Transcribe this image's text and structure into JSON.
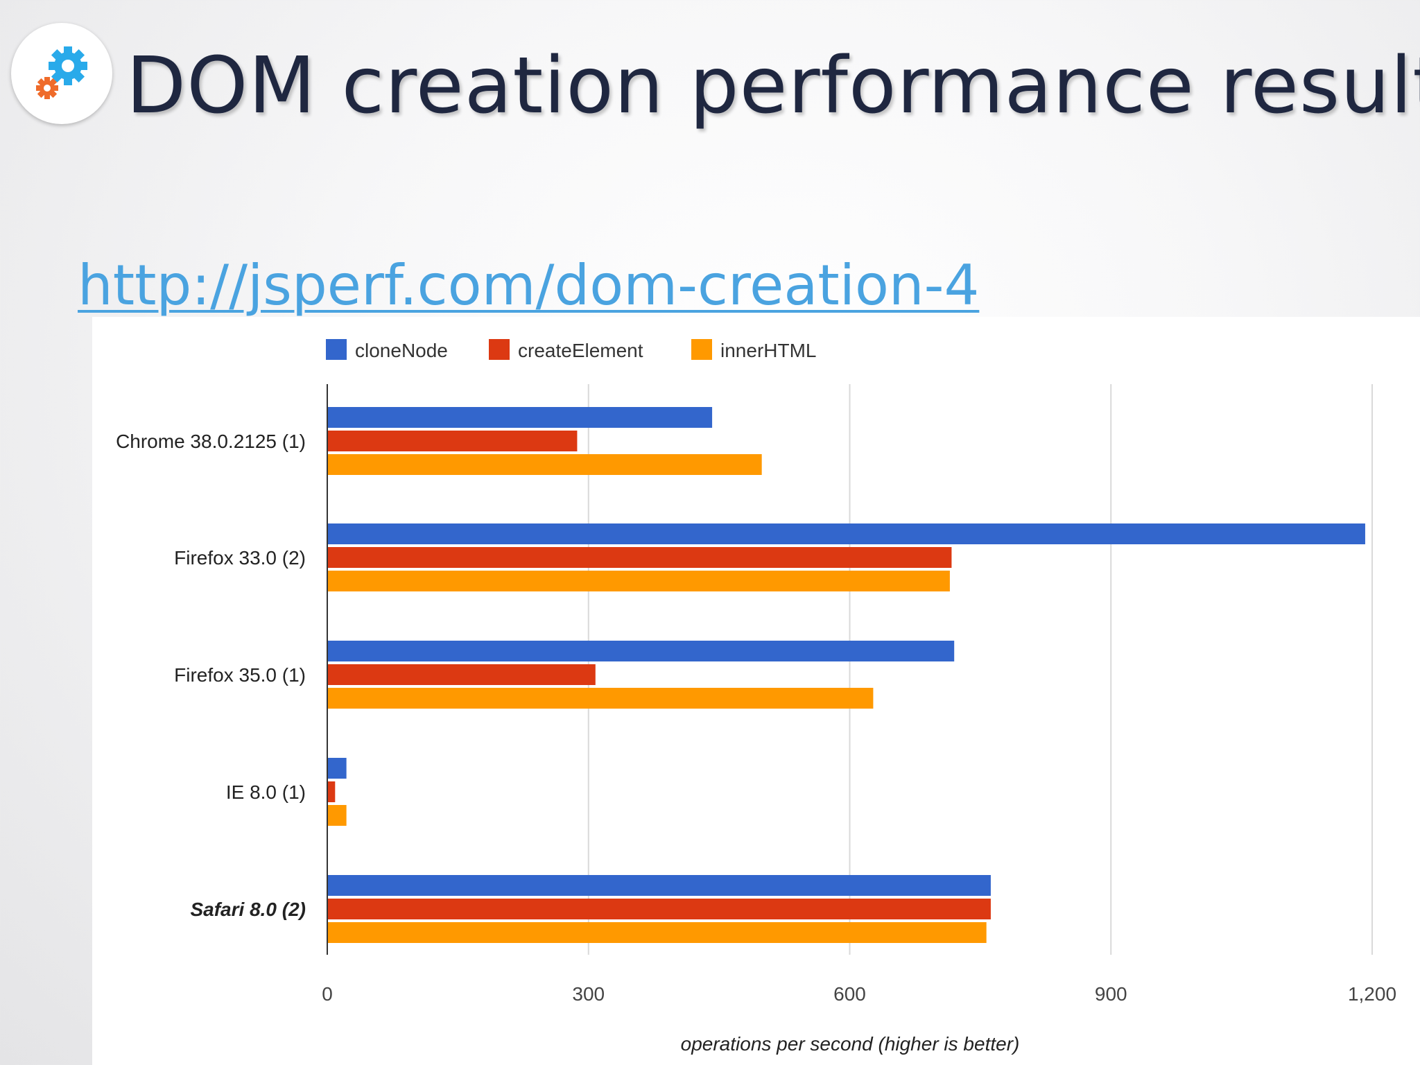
{
  "slide": {
    "title": "DOM creation performance results",
    "link": "http://jsperf.com/dom-creation-4",
    "logo_icon": "gears-icon"
  },
  "chart_data": {
    "type": "bar",
    "orientation": "horizontal",
    "categories": [
      "Chrome 38.0.2125 (1)",
      "Firefox 33.0 (2)",
      "Firefox 35.0 (1)",
      "IE 8.0 (1)",
      "Safari 8.0 (2)"
    ],
    "highlight_category": "Safari 8.0 (2)",
    "series": [
      {
        "name": "cloneNode",
        "color": "#3366cc",
        "values": [
          442,
          1192,
          720,
          22,
          762
        ]
      },
      {
        "name": "createElement",
        "color": "#dc3912",
        "values": [
          287,
          717,
          308,
          9,
          762
        ]
      },
      {
        "name": "innerHTML",
        "color": "#ff9900",
        "values": [
          499,
          715,
          627,
          22,
          757
        ]
      }
    ],
    "xlim": [
      0,
      1200
    ],
    "xticks": [
      0,
      300,
      600,
      900,
      1200
    ],
    "xtick_labels": [
      "0",
      "300",
      "600",
      "900",
      "1,200"
    ],
    "xlabel": "operations per second (higher is better)",
    "legend_position": "top-left",
    "grid": true
  }
}
